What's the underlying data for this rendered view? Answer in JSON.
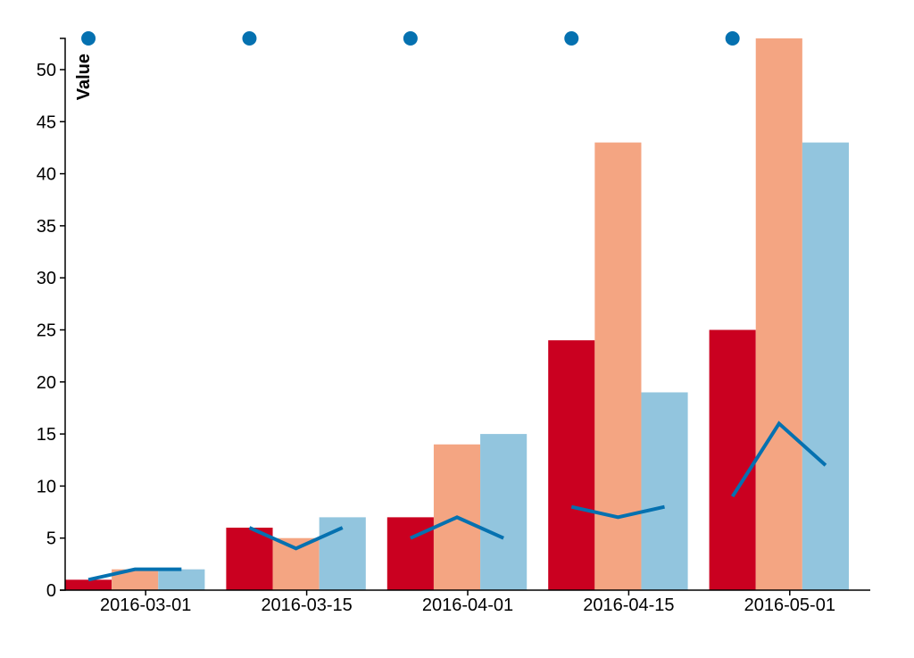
{
  "chart_data": {
    "type": "bar",
    "categories": [
      "2016-03-01",
      "2016-03-15",
      "2016-04-01",
      "2016-04-15",
      "2016-05-01"
    ],
    "ylabel": "Value",
    "ylim": [
      0,
      53
    ],
    "yticks": [
      0,
      5,
      10,
      15,
      20,
      25,
      30,
      35,
      40,
      45,
      50
    ],
    "bar_series": [
      {
        "color": "#ca0020",
        "values": [
          1,
          6,
          7,
          24,
          25
        ]
      },
      {
        "color": "#f4a582",
        "values": [
          2,
          5,
          14,
          43,
          53
        ]
      },
      {
        "color": "#92c5de",
        "values": [
          2,
          7,
          15,
          19,
          43
        ]
      }
    ],
    "line_series": {
      "color": "#0571b0",
      "values": [
        [
          1,
          2,
          2
        ],
        [
          6,
          4,
          6
        ],
        [
          5,
          7,
          5
        ],
        [
          8,
          7,
          8
        ],
        [
          9,
          16,
          12
        ]
      ]
    },
    "dot_series": {
      "color": "#0571b0",
      "values": [
        53,
        53,
        53,
        53,
        53
      ]
    }
  }
}
